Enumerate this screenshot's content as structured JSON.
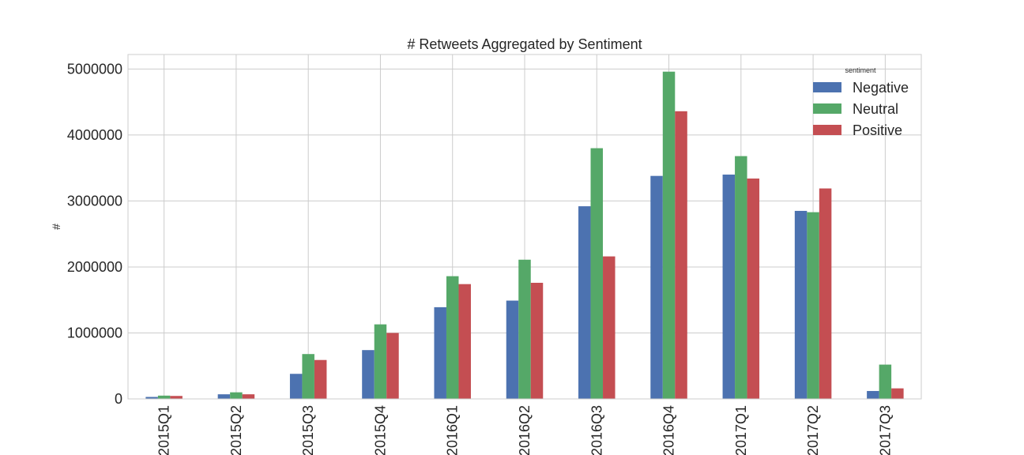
{
  "chart_data": {
    "type": "bar",
    "title": "# Retweets Aggregated by Sentiment",
    "xlabel": "",
    "ylabel": "#",
    "categories": [
      "2015Q1",
      "2015Q2",
      "2015Q3",
      "2015Q4",
      "2016Q1",
      "2016Q2",
      "2016Q3",
      "2016Q4",
      "2017Q1",
      "2017Q2",
      "2017Q3"
    ],
    "series": [
      {
        "name": "Negative",
        "color": "#4c72b0",
        "values": [
          30000,
          70000,
          380000,
          740000,
          1390000,
          1490000,
          2920000,
          3380000,
          3400000,
          2850000,
          120000
        ]
      },
      {
        "name": "Neutral",
        "color": "#55a868",
        "values": [
          50000,
          100000,
          680000,
          1130000,
          1860000,
          2110000,
          3800000,
          4960000,
          3680000,
          2830000,
          520000
        ]
      },
      {
        "name": "Positive",
        "color": "#c44e52",
        "values": [
          45000,
          70000,
          590000,
          1000000,
          1740000,
          1760000,
          2160000,
          4360000,
          3340000,
          3190000,
          160000
        ]
      }
    ],
    "ylim": [
      0,
      5220000
    ],
    "yticks": [
      0,
      1000000,
      2000000,
      3000000,
      4000000,
      5000000
    ],
    "ytick_labels": [
      "0",
      "1000000",
      "2000000",
      "3000000",
      "4000000",
      "5000000"
    ],
    "grid": true,
    "legend": {
      "title": "sentiment",
      "position": "top-right"
    }
  }
}
